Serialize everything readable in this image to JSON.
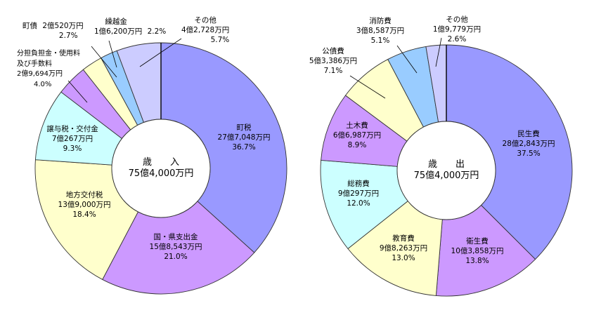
{
  "chart_data": [
    {
      "type": "pie",
      "variant": "donut",
      "title": "歳　　入",
      "total_label": "75億4,000万円",
      "direction": "clockwise",
      "start_angle": "12 o'clock",
      "center": [
        229,
        240
      ],
      "outer_radius": 179,
      "inner_radius": 70,
      "slices": [
        {
          "name": "町税",
          "amount": "27億7,048万円",
          "percent": 36.7,
          "color": "#9999ff"
        },
        {
          "name": "国・県支出金",
          "amount": "15億8,543万円",
          "percent": 21.0,
          "color": "#cc99ff"
        },
        {
          "name": "地方交付税",
          "amount": "13億9,000万円",
          "percent": 18.4,
          "color": "#ffffcc"
        },
        {
          "name": "譲与税・交付金",
          "amount": "7億267万円",
          "percent": 9.3,
          "color": "#ccffff"
        },
        {
          "name": "分担負担金・使用料及び手数料",
          "amount": "2億9,694万円",
          "percent": 4.0,
          "color": "#cc99ff"
        },
        {
          "name": "町債",
          "amount": "2億520万円",
          "percent": 2.7,
          "color": "#ffffcc"
        },
        {
          "name": "繰越金",
          "amount": "1億6,200万円",
          "percent": 2.2,
          "color": "#99ccff"
        },
        {
          "name": "その他",
          "amount": "4億2,728万円",
          "percent": 5.7,
          "color": "#ccccff"
        }
      ]
    },
    {
      "type": "pie",
      "variant": "donut",
      "title": "歳　　出",
      "total_label": "75億4,000万円",
      "direction": "clockwise",
      "start_angle": "12 o'clock",
      "center": [
        635,
        243
      ],
      "outer_radius": 179,
      "inner_radius": 70,
      "slices": [
        {
          "name": "民生費",
          "amount": "28億2,843万円",
          "percent": 37.5,
          "color": "#9999ff"
        },
        {
          "name": "衛生費",
          "amount": "10億3,858万円",
          "percent": 13.8,
          "color": "#cc99ff"
        },
        {
          "name": "教育費",
          "amount": "9億8,263万円",
          "percent": 13.0,
          "color": "#ffffcc"
        },
        {
          "name": "総務費",
          "amount": "9億297万円",
          "percent": 12.0,
          "color": "#ccffff"
        },
        {
          "name": "土木費",
          "amount": "6億6,987万円",
          "percent": 8.9,
          "color": "#cc99ff"
        },
        {
          "name": "公債費",
          "amount": "5億3,386万円",
          "percent": 7.1,
          "color": "#ffffcc"
        },
        {
          "name": "消防費",
          "amount": "3億8,587万円",
          "percent": 5.1,
          "color": "#99ccff"
        },
        {
          "name": "その他",
          "amount": "1億9,779万円",
          "percent": 2.6,
          "color": "#ccccff"
        }
      ]
    }
  ],
  "revenue": {
    "title": "歳　　入",
    "total": "75億4,000万円",
    "labels": [
      {
        "name": "町税",
        "amount": "27億7,048万円",
        "pct": "36.7%"
      },
      {
        "name": "国・県支出金",
        "amount": "15億8,543万円",
        "pct": "21.0%"
      },
      {
        "name": "地方交付税",
        "amount": "13億9,000万円",
        "pct": "18.4%"
      },
      {
        "name": "譲与税・交付金",
        "amount": "7億267万円",
        "pct": "9.3%"
      },
      {
        "name": "分担負担金・使用料",
        "name2": "及び手数料",
        "amount": "2億9,694万円",
        "pct": "4.0%"
      },
      {
        "name": "町債",
        "amount": "2億520万円",
        "pct": "2.7%"
      },
      {
        "name": "繰越金",
        "amount": "1億6,200万円",
        "pct": "2.2%"
      },
      {
        "name": "その他",
        "amount": "4億2,728万円",
        "pct": "5.7%"
      }
    ]
  },
  "expenditure": {
    "title": "歳　　出",
    "total": "75億4,000万円",
    "labels": [
      {
        "name": "民生費",
        "amount": "28億2,843万円",
        "pct": "37.5%"
      },
      {
        "name": "衛生費",
        "amount": "10億3,858万円",
        "pct": "13.8%"
      },
      {
        "name": "教育費",
        "amount": "9億8,263万円",
        "pct": "13.0%"
      },
      {
        "name": "総務費",
        "amount": "9億297万円",
        "pct": "12.0%"
      },
      {
        "name": "土木費",
        "amount": "6億6,987万円",
        "pct": "8.9%"
      },
      {
        "name": "公債費",
        "amount": "5億3,386万円",
        "pct": "7.1%"
      },
      {
        "name": "消防費",
        "amount": "3億8,587万円",
        "pct": "5.1%"
      },
      {
        "name": "その他",
        "amount": "1億9,779万円",
        "pct": "2.6%"
      }
    ]
  }
}
